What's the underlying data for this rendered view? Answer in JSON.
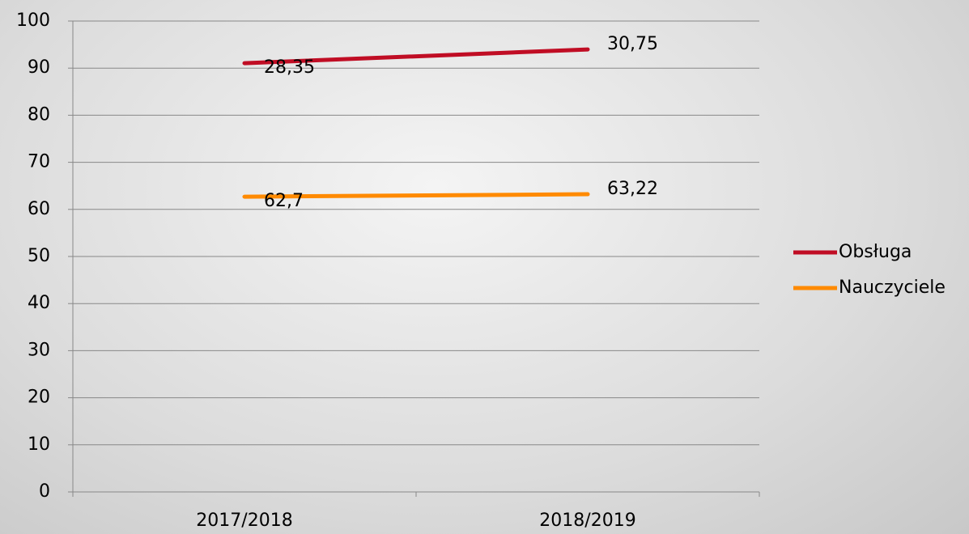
{
  "chart_data": {
    "type": "line",
    "stacked": true,
    "categories": [
      "2017/2018",
      "2018/2019"
    ],
    "series": [
      {
        "name": "Obsługa",
        "color": "#c00d24",
        "values": [
          28.35,
          30.75
        ],
        "value_labels": [
          "28,35",
          "30,75"
        ]
      },
      {
        "name": "Nauczyciele",
        "color": "#ff8a00",
        "values": [
          62.7,
          63.22
        ],
        "value_labels": [
          "62,7",
          "63,22"
        ]
      }
    ],
    "ylim": [
      0,
      100
    ],
    "yticks": [
      0,
      10,
      20,
      30,
      40,
      50,
      60,
      70,
      80,
      90,
      100
    ],
    "grid": true,
    "legend": "right"
  }
}
